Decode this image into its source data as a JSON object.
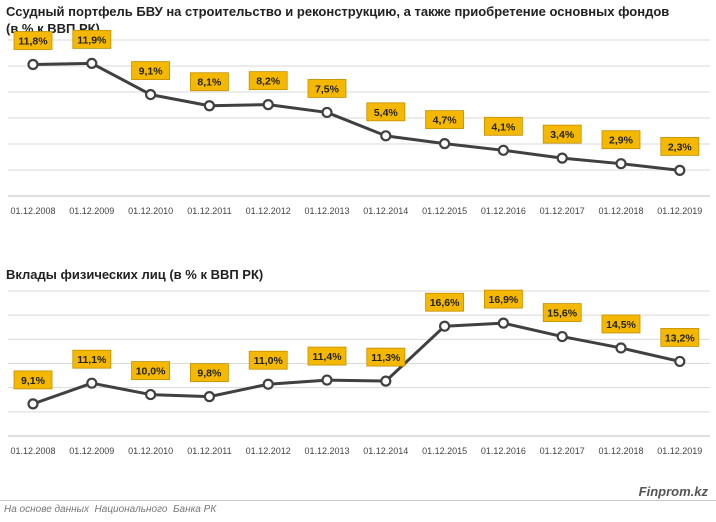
{
  "charts": [
    {
      "title_line1": "Ссудный портфель БВУ на строительство и реконструкцию, а также приобретение основных фондов",
      "title_line2": "(в % к ВВП РК)"
    },
    {
      "title_line1": "Вклады физических лиц (в % к ВВП РК)"
    }
  ],
  "chart_data": [
    {
      "type": "line",
      "title": "Ссудный портфель БВУ на строительство и реконструкцию, а также приобретение основных фондов (в % к ВВП РК)",
      "categories": [
        "01.12.2008",
        "01.12.2009",
        "01.12.2010",
        "01.12.2011",
        "01.12.2012",
        "01.12.2013",
        "01.12.2014",
        "01.12.2015",
        "01.12.2016",
        "01.12.2017",
        "01.12.2018",
        "01.12.2019"
      ],
      "values": [
        11.8,
        11.9,
        9.1,
        8.1,
        8.2,
        7.5,
        5.4,
        4.7,
        4.1,
        3.4,
        2.9,
        2.3
      ],
      "labels": [
        "11,8%",
        "11,9%",
        "9,1%",
        "8,1%",
        "8,2%",
        "7,5%",
        "5,4%",
        "4,7%",
        "4,1%",
        "3,4%",
        "2,9%",
        "2,3%"
      ],
      "ylim": [
        0,
        14
      ],
      "grid": true
    },
    {
      "type": "line",
      "title": "Вклады физических лиц (в % к ВВП РК)",
      "categories": [
        "01.12.2008",
        "01.12.2009",
        "01.12.2010",
        "01.12.2011",
        "01.12.2012",
        "01.12.2013",
        "01.12.2014",
        "01.12.2015",
        "01.12.2016",
        "01.12.2017",
        "01.12.2018",
        "01.12.2019"
      ],
      "values": [
        9.1,
        11.1,
        10.0,
        9.8,
        11.0,
        11.4,
        11.3,
        16.6,
        16.9,
        15.6,
        14.5,
        13.2
      ],
      "labels": [
        "9,1%",
        "11,1%",
        "10,0%",
        "9,8%",
        "11,0%",
        "11,4%",
        "11,3%",
        "16,6%",
        "16,9%",
        "15,6%",
        "14,5%",
        "13,2%"
      ],
      "ylim": [
        6,
        20
      ],
      "grid": true
    }
  ],
  "colors": {
    "line": "#404040",
    "label_bg": "#f5b800",
    "label_border": "#c28f00",
    "grid": "#d9d9d9"
  },
  "footer": {
    "source": "На основе данных  Национального  Банка РК",
    "brand": "Finprom.kz"
  }
}
